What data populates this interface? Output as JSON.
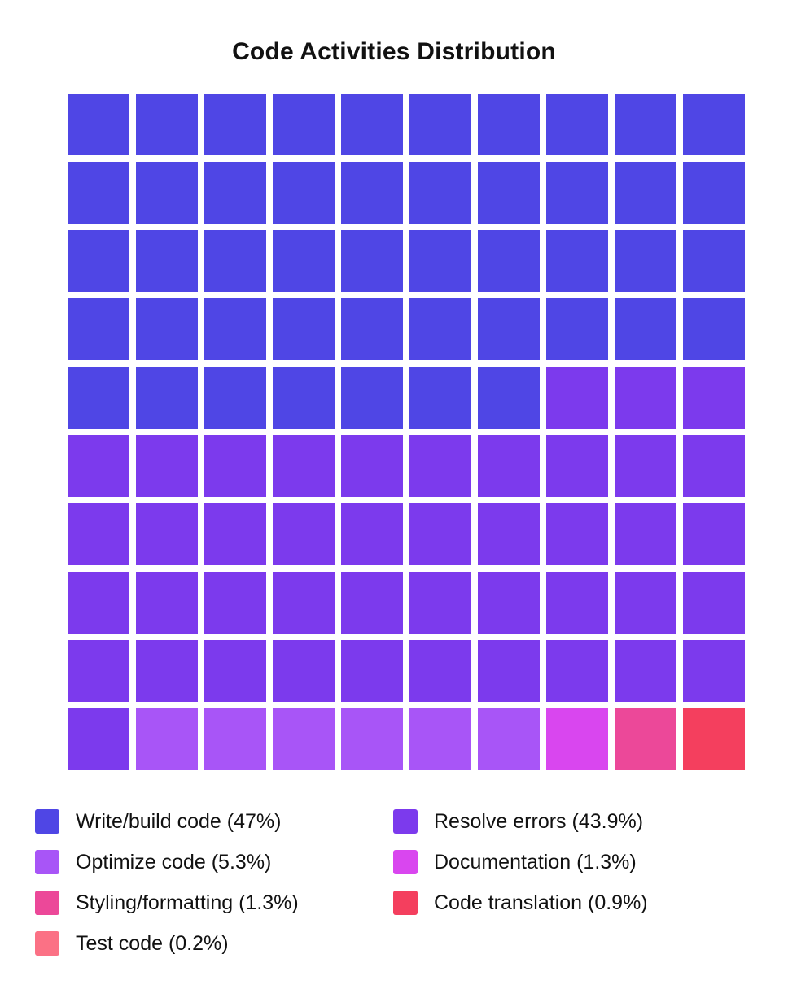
{
  "chart_data": {
    "type": "waffle",
    "title": "Code Activities Distribution",
    "grid": {
      "rows": 10,
      "cols": 10
    },
    "categories": [
      {
        "name": "Write/build code",
        "label": "Write/build code (47%)",
        "percent": 47,
        "squares": 47,
        "color": "#4f46e5"
      },
      {
        "name": "Resolve errors",
        "label": "Resolve errors (43.9%)",
        "percent": 43.9,
        "squares": 44,
        "color": "#7c3aed"
      },
      {
        "name": "Optimize code",
        "label": "Optimize code (5.3%)",
        "percent": 5.3,
        "squares": 6,
        "color": "#a855f7"
      },
      {
        "name": "Documentation",
        "label": "Documentation (1.3%)",
        "percent": 1.3,
        "squares": 1,
        "color": "#d946ef"
      },
      {
        "name": "Styling/formatting",
        "label": "Styling/formatting (1.3%)",
        "percent": 1.3,
        "squares": 1,
        "color": "#ec4899"
      },
      {
        "name": "Code translation",
        "label": "Code translation (0.9%)",
        "percent": 0.9,
        "squares": 1,
        "color": "#f43f5e"
      },
      {
        "name": "Test code",
        "label": "Test code (0.2%)",
        "percent": 0.2,
        "squares": 0,
        "color": "#fb7185"
      }
    ],
    "legend_order": [
      "Write/build code",
      "Resolve errors",
      "Optimize code",
      "Documentation",
      "Styling/formatting",
      "Code translation",
      "Test code"
    ],
    "legend_placement": "bottom"
  }
}
